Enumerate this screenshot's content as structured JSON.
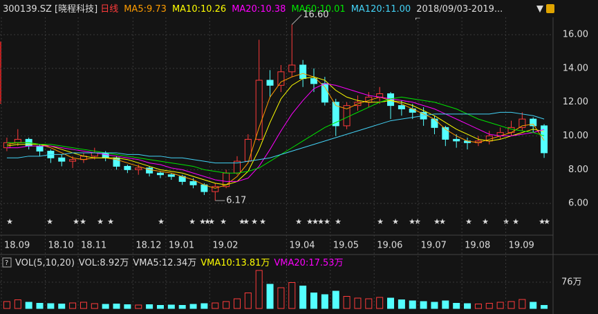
{
  "chart_data": [
    {
      "type": "candlestick",
      "title": "300139.SZ [晓程科技]",
      "period": "日线",
      "range_label": "2018/09/03-2019...",
      "categories": [
        "18.09",
        null,
        null,
        null,
        "18.10",
        null,
        null,
        "18.11",
        null,
        null,
        null,
        null,
        "18.12",
        null,
        null,
        "19.01",
        null,
        null,
        null,
        "19.02",
        null,
        null,
        null,
        null,
        null,
        null,
        "19.04",
        null,
        null,
        null,
        "19.05",
        null,
        null,
        null,
        "19.06",
        null,
        null,
        null,
        "19.07",
        null,
        null,
        null,
        "19.08",
        null,
        null,
        null,
        "19.09",
        null,
        null,
        null
      ],
      "open": [
        9.3,
        9.6,
        9.8,
        9.4,
        9.1,
        8.7,
        8.5,
        8.6,
        8.8,
        9.0,
        8.7,
        8.2,
        8.0,
        8.1,
        7.8,
        7.7,
        7.6,
        7.3,
        7.1,
        6.7,
        7.0,
        7.8,
        8.5,
        9.8,
        13.3,
        13.0,
        13.8,
        14.2,
        13.4,
        13.1,
        12.0,
        10.6,
        11.8,
        12.0,
        12.3,
        12.5,
        11.8,
        11.6,
        11.4,
        11.0,
        10.5,
        9.8,
        9.7,
        9.6,
        9.7,
        10.0,
        10.2,
        10.5,
        11.0,
        10.6
      ],
      "high": [
        9.9,
        10.4,
        9.9,
        9.5,
        9.2,
        8.9,
        8.8,
        9.0,
        9.3,
        9.1,
        8.8,
        8.3,
        8.3,
        8.2,
        7.9,
        7.8,
        7.7,
        7.5,
        7.2,
        7.2,
        8.0,
        8.8,
        10.1,
        15.7,
        13.9,
        14.2,
        16.6,
        14.5,
        14.0,
        13.5,
        12.2,
        12.0,
        12.4,
        12.6,
        12.9,
        12.6,
        12.1,
        11.9,
        11.7,
        11.2,
        10.6,
        10.1,
        9.9,
        10.0,
        10.3,
        10.5,
        10.9,
        11.4,
        11.1,
        10.7
      ],
      "low": [
        9.1,
        9.4,
        9.2,
        8.8,
        8.4,
        8.2,
        8.1,
        8.4,
        8.6,
        8.5,
        8.0,
        7.8,
        7.7,
        7.6,
        7.5,
        7.4,
        7.1,
        6.9,
        6.5,
        6.17,
        6.9,
        7.7,
        8.4,
        9.7,
        12.3,
        12.6,
        13.5,
        12.9,
        12.6,
        11.8,
        10.0,
        10.4,
        11.5,
        11.7,
        11.9,
        11.0,
        11.2,
        11.0,
        10.6,
        10.1,
        9.4,
        9.3,
        9.2,
        9.4,
        9.5,
        9.8,
        10.0,
        10.3,
        10.2,
        8.7
      ],
      "close": [
        9.6,
        9.8,
        9.4,
        9.1,
        8.7,
        8.5,
        8.6,
        8.8,
        9.0,
        8.7,
        8.2,
        8.0,
        8.1,
        7.8,
        7.7,
        7.6,
        7.3,
        7.1,
        6.7,
        7.0,
        7.8,
        8.5,
        9.8,
        13.3,
        13.0,
        13.8,
        14.2,
        13.4,
        13.1,
        12.0,
        10.6,
        11.8,
        12.0,
        12.3,
        12.5,
        11.8,
        11.6,
        11.4,
        11.0,
        10.5,
        9.8,
        9.7,
        9.6,
        9.7,
        10.0,
        10.2,
        10.5,
        11.0,
        10.6,
        9.0
      ],
      "up_color": "#ff3b3b",
      "down_color": "#54ffff",
      "ylim": [
        5.35,
        17.03
      ],
      "yticks": [
        {
          "value": 6,
          "label": "6.00"
        },
        {
          "value": 8,
          "label": "8.00"
        },
        {
          "value": 10,
          "label": "10.00"
        },
        {
          "value": 12,
          "label": "12.00"
        },
        {
          "value": 14,
          "label": "14.00"
        },
        {
          "value": 16,
          "label": "16.00"
        }
      ],
      "annotations": [
        {
          "value": 16.6,
          "label": "16.60"
        },
        {
          "value": 6.17,
          "label": "6.17"
        }
      ],
      "series": [
        {
          "name": "MA5:9.73",
          "color": "#ff9c00",
          "values": [
            9.5,
            9.6,
            9.6,
            9.5,
            9.3,
            9.0,
            8.7,
            8.6,
            8.7,
            8.7,
            8.6,
            8.4,
            8.2,
            8.0,
            7.9,
            7.8,
            7.6,
            7.4,
            7.1,
            6.9,
            7.1,
            7.6,
            8.4,
            10.5,
            12.3,
            13.2,
            13.5,
            13.7,
            13.5,
            12.9,
            11.8,
            11.6,
            11.9,
            12.1,
            12.3,
            12.1,
            11.9,
            11.6,
            11.3,
            11.0,
            10.4,
            10.0,
            9.7,
            9.6,
            9.8,
            10.0,
            10.2,
            10.6,
            10.7,
            9.73
          ]
        },
        {
          "name": "MA10:10.26",
          "color": "#ffff00",
          "values": [
            9.4,
            9.5,
            9.5,
            9.5,
            9.4,
            9.2,
            9.0,
            8.8,
            8.7,
            8.7,
            8.7,
            8.6,
            8.4,
            8.2,
            8.0,
            7.9,
            7.8,
            7.6,
            7.4,
            7.2,
            7.1,
            7.3,
            7.9,
            9.2,
            10.8,
            12.2,
            13.0,
            13.4,
            13.5,
            13.3,
            12.7,
            12.3,
            12.1,
            12.0,
            12.0,
            12.1,
            12.0,
            11.8,
            11.5,
            11.2,
            10.8,
            10.4,
            10.1,
            9.8,
            9.7,
            9.8,
            10.0,
            10.2,
            10.4,
            10.26
          ]
        },
        {
          "name": "MA20:10.38",
          "color": "#ff00ff",
          "values": [
            9.3,
            9.3,
            9.4,
            9.4,
            9.4,
            9.3,
            9.2,
            9.1,
            9.0,
            8.9,
            8.8,
            8.7,
            8.6,
            8.4,
            8.3,
            8.1,
            8.0,
            7.8,
            7.6,
            7.4,
            7.3,
            7.3,
            7.5,
            8.2,
            9.2,
            10.3,
            11.3,
            12.1,
            12.8,
            13.1,
            13.0,
            12.8,
            12.6,
            12.4,
            12.3,
            12.2,
            12.1,
            12.0,
            11.8,
            11.6,
            11.3,
            11.0,
            10.7,
            10.4,
            10.1,
            10.0,
            10.0,
            10.1,
            10.2,
            10.38
          ]
        },
        {
          "name": "MA60:10.01",
          "color": "#00e600",
          "values": [
            9.6,
            9.6,
            9.6,
            9.5,
            9.5,
            9.4,
            9.3,
            9.2,
            9.1,
            9.0,
            8.9,
            8.8,
            8.7,
            8.6,
            8.5,
            8.4,
            8.3,
            8.2,
            8.0,
            7.9,
            7.8,
            7.8,
            7.9,
            8.1,
            8.5,
            8.9,
            9.3,
            9.7,
            10.1,
            10.5,
            10.8,
            11.1,
            11.4,
            11.7,
            12.0,
            12.2,
            12.3,
            12.2,
            12.1,
            12.0,
            11.8,
            11.6,
            11.3,
            11.0,
            10.8,
            10.6,
            10.4,
            10.3,
            10.2,
            10.01
          ]
        },
        {
          "name": "MA120:11.00",
          "color": "#43d3f7",
          "values": [
            8.7,
            8.7,
            8.8,
            8.8,
            8.9,
            8.9,
            9.0,
            9.0,
            9.0,
            9.0,
            9.0,
            8.9,
            8.9,
            8.8,
            8.8,
            8.7,
            8.7,
            8.6,
            8.5,
            8.4,
            8.4,
            8.4,
            8.5,
            8.6,
            8.7,
            8.9,
            9.1,
            9.3,
            9.5,
            9.7,
            9.9,
            10.1,
            10.3,
            10.5,
            10.7,
            10.9,
            11.0,
            11.1,
            11.2,
            11.3,
            11.3,
            11.3,
            11.3,
            11.3,
            11.3,
            11.4,
            11.4,
            11.3,
            11.2,
            11.0
          ]
        }
      ]
    },
    {
      "type": "bar",
      "title": "VOL(5,10,20)",
      "values": [
        20,
        25,
        18,
        15,
        14,
        13,
        16,
        18,
        14,
        12,
        13,
        11,
        10,
        11,
        9,
        10,
        9,
        12,
        14,
        16,
        20,
        28,
        45,
        110,
        70,
        60,
        75,
        65,
        45,
        40,
        50,
        35,
        30,
        28,
        32,
        30,
        25,
        22,
        20,
        18,
        22,
        15,
        14,
        13,
        15,
        18,
        20,
        26,
        18,
        8.92
      ],
      "ylim": [
        0,
        122
      ],
      "yticks": [
        {
          "value": 76,
          "label": "76万"
        }
      ],
      "legend": [
        {
          "name": "VOL:8.92万",
          "color": "#dddddd"
        },
        {
          "name": "VMA5:12.34万",
          "color": "#dddddd"
        },
        {
          "name": "VMA10:13.81万",
          "color": "#ffff00"
        },
        {
          "name": "VMA20:17.53万",
          "color": "#ff00ff"
        }
      ]
    }
  ]
}
